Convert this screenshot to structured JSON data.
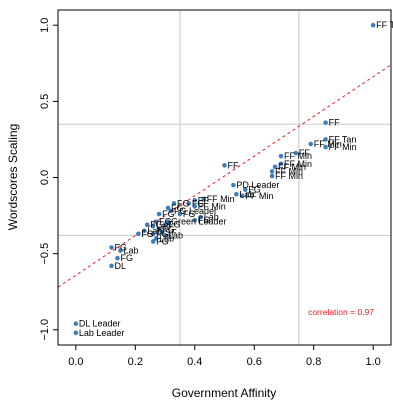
{
  "chart_data": {
    "type": "scatter",
    "xlabel": "Government Affinity",
    "ylabel": "Wordscores Scaling",
    "xlim": [
      -0.06,
      1.06
    ],
    "ylim": [
      -1.1,
      1.1
    ],
    "x_ticks": [
      0.0,
      0.2,
      0.4,
      0.6,
      0.8,
      1.0
    ],
    "x_tick_labels": [
      "0.0",
      "0.2",
      "0.4",
      "0.6",
      "0.8",
      "1.0"
    ],
    "y_ticks": [
      -1.0,
      -0.5,
      0.0,
      0.5,
      1.0
    ],
    "y_tick_labels": [
      "−1.0",
      "−0.5",
      "0.0",
      "0.5",
      "1.0"
    ],
    "gridlines": {
      "x": [
        0.35,
        0.75
      ],
      "y": [
        -0.38,
        0.35
      ]
    },
    "regression_line": {
      "color": "#e8202a",
      "points": [
        [
          -0.06,
          -0.72
        ],
        [
          1.06,
          0.74
        ]
      ]
    },
    "annotation": {
      "text": "correlation = 0.97",
      "color": "#e8202a"
    },
    "point_color": "#3c7fc0",
    "points": [
      {
        "x": 1.0,
        "y": 1.0,
        "label": "FF Taoiseach"
      },
      {
        "x": 0.84,
        "y": 0.36,
        "label": "FF"
      },
      {
        "x": 0.84,
        "y": 0.25,
        "label": "FF Tan"
      },
      {
        "x": 0.79,
        "y": 0.22,
        "label": "FF Min"
      },
      {
        "x": 0.84,
        "y": 0.2,
        "label": "FF Min"
      },
      {
        "x": 0.74,
        "y": 0.16,
        "label": "FF"
      },
      {
        "x": 0.69,
        "y": 0.14,
        "label": "FF Min"
      },
      {
        "x": 0.69,
        "y": 0.09,
        "label": "FF Min"
      },
      {
        "x": 0.67,
        "y": 0.07,
        "label": "FF Min"
      },
      {
        "x": 0.66,
        "y": 0.04,
        "label": "FF Min"
      },
      {
        "x": 0.66,
        "y": 0.01,
        "label": "FF Min"
      },
      {
        "x": 0.5,
        "y": 0.08,
        "label": "FF"
      },
      {
        "x": 0.53,
        "y": -0.05,
        "label": "PD Leader"
      },
      {
        "x": 0.57,
        "y": -0.08,
        "label": "FG"
      },
      {
        "x": 0.54,
        "y": -0.11,
        "label": "Lab"
      },
      {
        "x": 0.56,
        "y": -0.12,
        "label": "FF Min"
      },
      {
        "x": 0.43,
        "y": -0.14,
        "label": "FF Min"
      },
      {
        "x": 0.4,
        "y": -0.15,
        "label": "FF"
      },
      {
        "x": 0.38,
        "y": -0.17,
        "label": "FG"
      },
      {
        "x": 0.4,
        "y": -0.19,
        "label": "FF Min"
      },
      {
        "x": 0.33,
        "y": -0.17,
        "label": "FG"
      },
      {
        "x": 0.31,
        "y": -0.2,
        "label": "FG"
      },
      {
        "x": 0.32,
        "y": -0.22,
        "label": "FG Leader"
      },
      {
        "x": 0.28,
        "y": -0.24,
        "label": "FG"
      },
      {
        "x": 0.35,
        "y": -0.24,
        "label": "FG"
      },
      {
        "x": 0.42,
        "y": -0.26,
        "label": "Lab"
      },
      {
        "x": 0.4,
        "y": -0.28,
        "label": "FG"
      },
      {
        "x": 0.27,
        "y": -0.29,
        "label": "FG"
      },
      {
        "x": 0.31,
        "y": -0.29,
        "label": "Green Leader"
      },
      {
        "x": 0.3,
        "y": -0.31,
        "label": "FG"
      },
      {
        "x": 0.24,
        "y": -0.31,
        "label": "FG"
      },
      {
        "x": 0.26,
        "y": -0.32,
        "label": "Lab"
      },
      {
        "x": 0.28,
        "y": -0.34,
        "label": "FG"
      },
      {
        "x": 0.23,
        "y": -0.35,
        "label": "Lab"
      },
      {
        "x": 0.29,
        "y": -0.36,
        "label": "SF"
      },
      {
        "x": 0.21,
        "y": -0.37,
        "label": "FG"
      },
      {
        "x": 0.26,
        "y": -0.37,
        "label": "FG"
      },
      {
        "x": 0.3,
        "y": -0.38,
        "label": "Lab"
      },
      {
        "x": 0.27,
        "y": -0.4,
        "label": "Lab"
      },
      {
        "x": 0.26,
        "y": -0.42,
        "label": "FG"
      },
      {
        "x": 0.12,
        "y": -0.46,
        "label": "FG"
      },
      {
        "x": 0.15,
        "y": -0.48,
        "label": "Lab"
      },
      {
        "x": 0.14,
        "y": -0.53,
        "label": "FG"
      },
      {
        "x": 0.12,
        "y": -0.58,
        "label": "DL"
      },
      {
        "x": 0.0,
        "y": -0.96,
        "label": "DL Leader"
      },
      {
        "x": 0.0,
        "y": -1.02,
        "label": "Lab Leader"
      }
    ]
  }
}
